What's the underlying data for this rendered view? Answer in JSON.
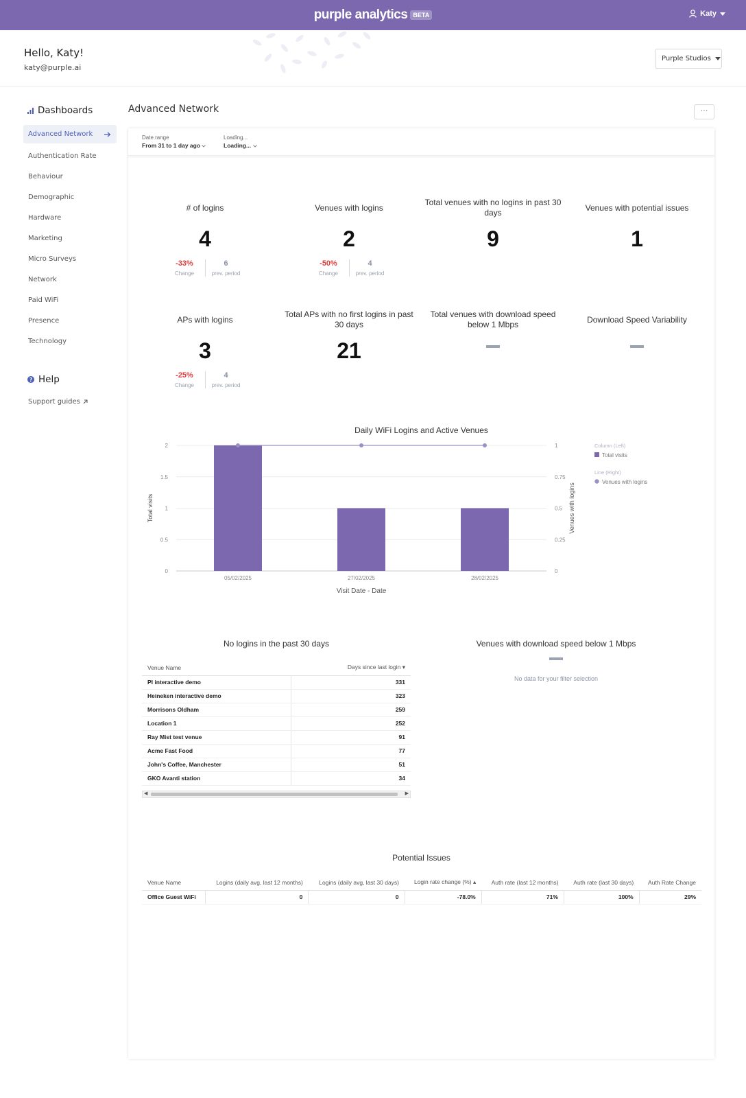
{
  "brand": {
    "name": "purple analytics",
    "badge": "BETA"
  },
  "user": {
    "name": "Katy",
    "greeting": "Hello, Katy!",
    "email": "katy@purple.ai"
  },
  "org_selector": {
    "value": "Purple Studios"
  },
  "sidebar": {
    "dashboards_heading": "Dashboards",
    "items": [
      {
        "label": "Advanced Network",
        "active": true
      },
      {
        "label": "Authentication Rate"
      },
      {
        "label": "Behaviour"
      },
      {
        "label": "Demographic"
      },
      {
        "label": "Hardware"
      },
      {
        "label": "Marketing"
      },
      {
        "label": "Micro Surveys"
      },
      {
        "label": "Network"
      },
      {
        "label": "Paid WiFi"
      },
      {
        "label": "Presence"
      },
      {
        "label": "Technology"
      }
    ],
    "help_heading": "Help",
    "support_label": "Support guides"
  },
  "main": {
    "title": "Advanced Network",
    "more_label": "···"
  },
  "filters": [
    {
      "label": "Date range",
      "value": "From 31 to 1 day ago"
    },
    {
      "label": "Loading...",
      "value": "Loading..."
    }
  ],
  "kpis": [
    {
      "label": "# of logins",
      "value": "4",
      "change": "-33%",
      "change_caption": "Change",
      "prev": "6",
      "prev_caption": "prev. period"
    },
    {
      "label": "Venues with logins",
      "value": "2",
      "change": "-50%",
      "change_caption": "Change",
      "prev": "4",
      "prev_caption": "prev. period"
    },
    {
      "label": "Total venues with no logins in past 30 days",
      "value": "9"
    },
    {
      "label": "Venues with potential issues",
      "value": "1"
    },
    {
      "label": "APs with logins",
      "value": "3",
      "change": "-25%",
      "change_caption": "Change",
      "prev": "4",
      "prev_caption": "prev. period"
    },
    {
      "label": "Total APs with no first logins in past 30 days",
      "value": "21"
    },
    {
      "label": "Total venues with download speed below 1 Mbps",
      "value": null
    },
    {
      "label": "Download Speed Variability",
      "value": null
    }
  ],
  "chart_data": {
    "type": "bar",
    "title": "Daily WiFi Logins and Active Venues",
    "categories": [
      "05/02/2025",
      "27/02/2025",
      "28/02/2025"
    ],
    "series": [
      {
        "name": "Total visits",
        "type": "bar",
        "axis": "left",
        "values": [
          2,
          1,
          1
        ]
      },
      {
        "name": "Venues with logins",
        "type": "line",
        "axis": "right",
        "values": [
          1,
          1,
          1
        ]
      }
    ],
    "xlabel": "Visit Date - Date",
    "ylabel": "Total visits",
    "ylabel_right": "Venues with logins",
    "ylim": [
      0,
      2
    ],
    "ylim_right": [
      0,
      1
    ],
    "yticks": [
      "0",
      "0.5",
      "1",
      "1.5",
      "2"
    ],
    "yticks_right": [
      "0",
      "0.25",
      "0.5",
      "0.75",
      "1"
    ],
    "legend_group_left": "Column (Left)",
    "legend_group_right": "Line (Right)",
    "legend": "right",
    "colors": {
      "bar": "#7b68ae",
      "line": "#9b8fc4"
    }
  },
  "no_logins": {
    "title": "No logins in the past 30 days",
    "columns": [
      "Venue Name",
      "Days since last login ▾"
    ],
    "rows": [
      [
        "PI interactive demo",
        "331"
      ],
      [
        "Heineken interactive demo",
        "323"
      ],
      [
        "Morrisons Oldham",
        "259"
      ],
      [
        "Location 1",
        "252"
      ],
      [
        "Ray Mist test venue",
        "91"
      ],
      [
        "Acme Fast Food",
        "77"
      ],
      [
        "John's Coffee, Manchester",
        "51"
      ],
      [
        "GKO Avanti station",
        "34"
      ]
    ]
  },
  "slow_download": {
    "title": "Venues with download speed below 1 Mbps",
    "empty_text": "No data for your filter selection"
  },
  "potential_issues": {
    "title": "Potential Issues",
    "columns": [
      "Venue Name",
      "Logins (daily avg, last 12 months)",
      "Logins (daily avg, last 30 days)",
      "Login rate change (%) ▴",
      "Auth rate (last 12 months)",
      "Auth rate (last 30 days)",
      "Auth Rate Change"
    ],
    "rows": [
      [
        "Office Guest WiFi",
        "0",
        "0",
        "-78.0%",
        "71%",
        "100%",
        "29%"
      ]
    ]
  }
}
